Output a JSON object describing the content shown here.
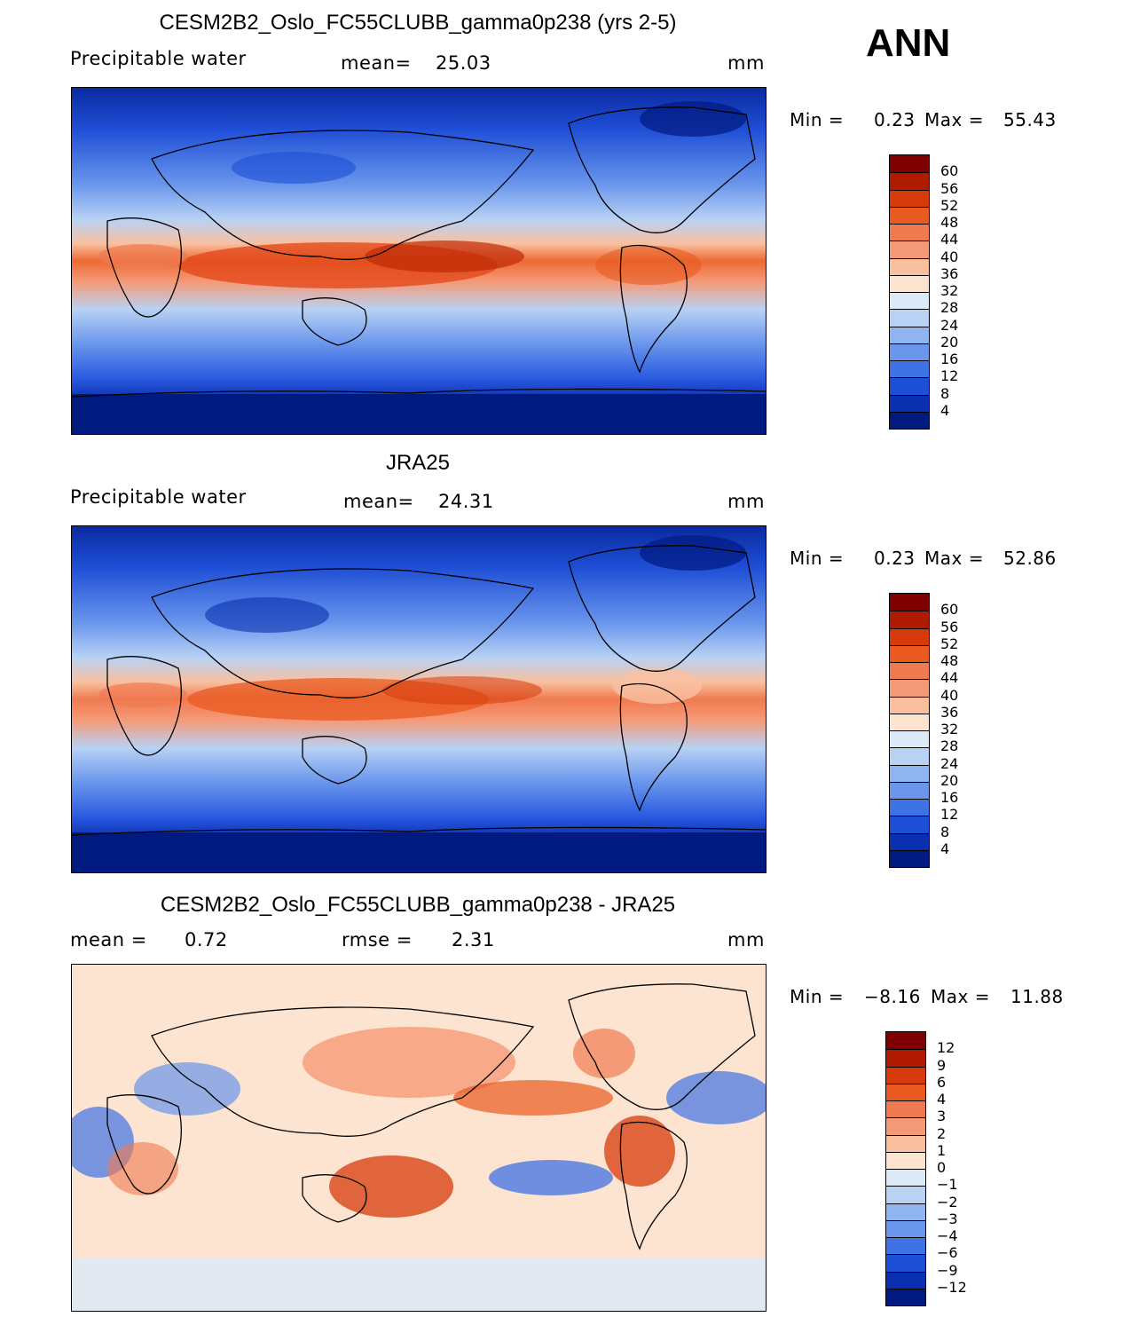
{
  "season": "ANN",
  "panels": [
    {
      "title": "CESM2B2_Oslo_FC55CLUBB_gamma0p238 (yrs 2-5)",
      "variable": "Precipitable water",
      "stat1_label": "mean=",
      "stat1_value": "25.03",
      "stat2_label": "",
      "stat2_value": "",
      "units": "mm",
      "min_label": "Min =",
      "min_value": "0.23",
      "max_label": "Max =",
      "max_value": "55.43"
    },
    {
      "title": "JRA25",
      "variable": "Precipitable water",
      "stat1_label": "mean=",
      "stat1_value": "24.31",
      "stat2_label": "",
      "stat2_value": "",
      "units": "mm",
      "min_label": "Min =",
      "min_value": "0.23",
      "max_label": "Max =",
      "max_value": "52.86"
    },
    {
      "title": "CESM2B2_Oslo_FC55CLUBB_gamma0p238 - JRA25",
      "variable": "",
      "stat1_label": "mean =",
      "stat1_value": "0.72",
      "stat2_label": "rmse =",
      "stat2_value": "2.31",
      "units": "mm",
      "min_label": "Min =",
      "min_value": "−8.16",
      "max_label": "Max =",
      "max_value": "11.88"
    }
  ],
  "colorbars": {
    "absolute": {
      "ticks": [
        "60",
        "56",
        "52",
        "48",
        "44",
        "40",
        "36",
        "32",
        "28",
        "24",
        "20",
        "16",
        "12",
        "8",
        "4"
      ],
      "colors": [
        "#7f0000",
        "#b01a00",
        "#d63a0b",
        "#e85a20",
        "#f07a50",
        "#f59a78",
        "#f9c0a0",
        "#fde4d0",
        "#dceaf8",
        "#b8d2f4",
        "#8fb4f0",
        "#6a96ec",
        "#3f72e4",
        "#1c4ed6",
        "#0a30b0",
        "#001a80"
      ]
    },
    "difference": {
      "ticks": [
        "12",
        "9",
        "6",
        "4",
        "3",
        "2",
        "1",
        "0",
        "−1",
        "−2",
        "−3",
        "−4",
        "−6",
        "−9",
        "−12"
      ],
      "colors": [
        "#7f0000",
        "#b01a00",
        "#d63a0b",
        "#e85a20",
        "#f07a50",
        "#f59a78",
        "#f9c0a0",
        "#fde4d0",
        "#dceaf8",
        "#b8d2f4",
        "#8fb4f0",
        "#6a96ec",
        "#3f72e4",
        "#1c4ed6",
        "#0a30b0",
        "#001a80"
      ]
    }
  }
}
